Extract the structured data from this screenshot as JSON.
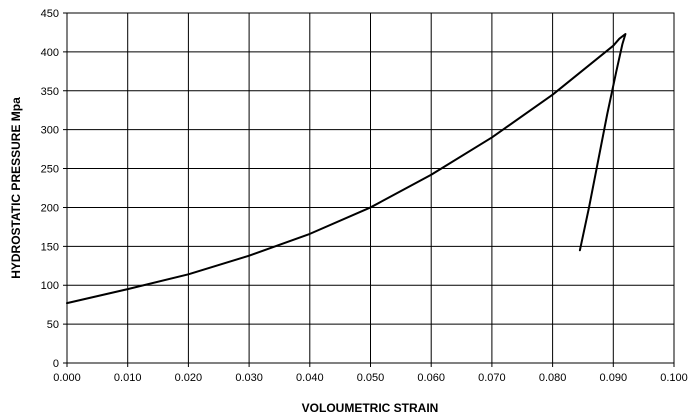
{
  "chart_data": {
    "type": "line",
    "title": "",
    "xlabel": "VOLOUMETRIC STRAIN",
    "ylabel": "HYDROSTATIC PRESSURE Mpa",
    "xlim": [
      0.0,
      0.1
    ],
    "ylim": [
      0,
      450
    ],
    "xticks": [
      "0.000",
      "0.010",
      "0.020",
      "0.030",
      "0.040",
      "0.050",
      "0.060",
      "0.070",
      "0.080",
      "0.090",
      "0.100"
    ],
    "yticks": [
      "0",
      "50",
      "100",
      "150",
      "200",
      "250",
      "300",
      "350",
      "400",
      "450"
    ],
    "grid": true,
    "legend": "none",
    "series": [
      {
        "x": [
          0.0,
          0.01,
          0.02,
          0.03,
          0.04,
          0.05,
          0.06,
          0.07,
          0.08,
          0.09,
          0.091,
          0.092,
          0.0915,
          0.0905,
          0.089,
          0.0875,
          0.086,
          0.0845
        ],
        "y": [
          77,
          95,
          114,
          138,
          166,
          200,
          242,
          290,
          345,
          408,
          417,
          423,
          410,
          375,
          320,
          260,
          200,
          145
        ]
      }
    ]
  }
}
